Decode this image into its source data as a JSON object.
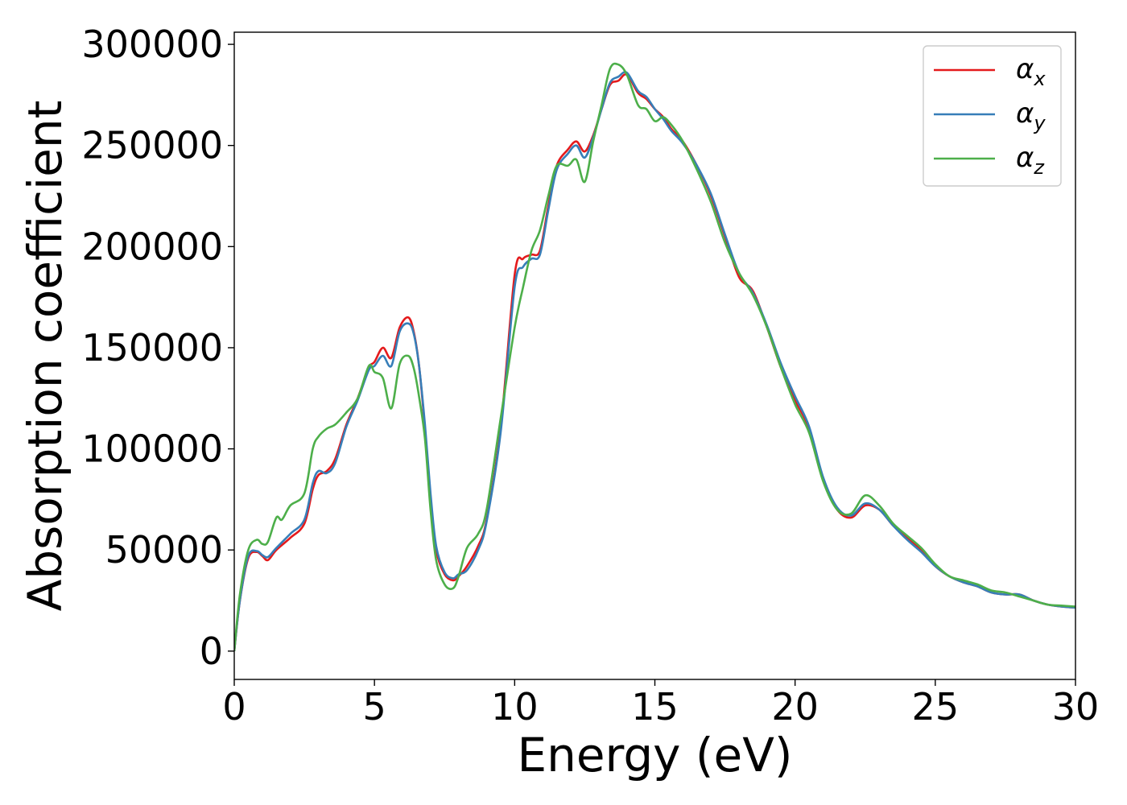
{
  "chart_data": {
    "type": "line",
    "xlabel": "Energy (eV)",
    "ylabel": "Absorption coefficient",
    "xlim": [
      0,
      30
    ],
    "ylim": [
      -14000,
      306000
    ],
    "xticks": [
      0,
      5,
      10,
      15,
      20,
      25,
      30
    ],
    "yticks": [
      0,
      50000,
      100000,
      150000,
      200000,
      250000,
      300000
    ],
    "grid": false,
    "legend_position": "top-right",
    "series": [
      {
        "name": "α_x",
        "symbol": "α",
        "subscript": "x",
        "color": "#e41a1c",
        "x": [
          0,
          0.2,
          0.5,
          0.8,
          1.0,
          1.2,
          1.5,
          2.0,
          2.5,
          2.8,
          3.0,
          3.3,
          3.6,
          4.0,
          4.4,
          4.8,
          5.0,
          5.3,
          5.6,
          5.9,
          6.2,
          6.4,
          6.6,
          6.8,
          7.0,
          7.2,
          7.5,
          7.8,
          8.0,
          8.3,
          8.7,
          9.0,
          9.5,
          10.0,
          10.3,
          10.6,
          10.9,
          11.2,
          11.5,
          11.9,
          12.2,
          12.5,
          12.8,
          13.1,
          13.4,
          13.7,
          14.0,
          14.4,
          14.7,
          15.0,
          15.3,
          15.6,
          16.0,
          16.5,
          17.0,
          17.5,
          18.0,
          18.5,
          19.0,
          19.5,
          20.0,
          20.5,
          21.0,
          21.5,
          22.0,
          22.5,
          23.0,
          23.5,
          24.0,
          24.5,
          25.0,
          25.5,
          26.0,
          26.5,
          27.0,
          27.5,
          28.0,
          28.5,
          29.0,
          29.5,
          30.0
        ],
        "y": [
          0,
          25000,
          46000,
          49000,
          47000,
          45000,
          50000,
          56000,
          63000,
          80000,
          87000,
          89000,
          95000,
          112000,
          125000,
          140000,
          143000,
          150000,
          145000,
          160000,
          165000,
          158000,
          140000,
          110000,
          75000,
          50000,
          38000,
          35000,
          37000,
          42000,
          52000,
          65000,
          110000,
          186000,
          194000,
          196000,
          198000,
          220000,
          240000,
          248000,
          252000,
          247000,
          255000,
          268000,
          280000,
          282000,
          285000,
          276000,
          273000,
          268000,
          264000,
          258000,
          252000,
          240000,
          225000,
          205000,
          185000,
          178000,
          160000,
          140000,
          124000,
          110000,
          85000,
          70000,
          66000,
          72000,
          70000,
          62000,
          56000,
          50000,
          42000,
          37000,
          34000,
          32000,
          29000,
          28000,
          28000,
          25000,
          23000,
          22000,
          21500
        ]
      },
      {
        "name": "α_y",
        "symbol": "α",
        "subscript": "y",
        "color": "#377eb8",
        "x": [
          0,
          0.2,
          0.5,
          0.8,
          1.0,
          1.2,
          1.5,
          2.0,
          2.5,
          2.8,
          3.0,
          3.3,
          3.6,
          4.0,
          4.4,
          4.8,
          5.0,
          5.3,
          5.6,
          5.9,
          6.2,
          6.4,
          6.6,
          6.8,
          7.0,
          7.2,
          7.5,
          7.8,
          8.0,
          8.3,
          8.7,
          9.0,
          9.5,
          10.0,
          10.3,
          10.6,
          10.9,
          11.2,
          11.5,
          11.9,
          12.2,
          12.5,
          12.8,
          13.1,
          13.4,
          13.7,
          14.0,
          14.4,
          14.7,
          15.0,
          15.3,
          15.6,
          16.0,
          16.5,
          17.0,
          17.5,
          18.0,
          18.5,
          19.0,
          19.5,
          20.0,
          20.5,
          21.0,
          21.5,
          22.0,
          22.5,
          23.0,
          23.5,
          24.0,
          24.5,
          25.0,
          25.5,
          26.0,
          26.5,
          27.0,
          27.5,
          28.0,
          28.5,
          29.0,
          29.5,
          30.0
        ],
        "y": [
          0,
          25000,
          47000,
          49500,
          47500,
          46500,
          51000,
          58000,
          65000,
          83000,
          89000,
          88000,
          93000,
          111000,
          124000,
          139000,
          141000,
          146000,
          141000,
          158000,
          162000,
          157000,
          140000,
          112000,
          78000,
          52000,
          39000,
          36000,
          38000,
          40000,
          50000,
          64000,
          108000,
          180000,
          190000,
          194000,
          196000,
          218000,
          238000,
          246000,
          250000,
          244000,
          254000,
          268000,
          281000,
          284000,
          286000,
          277000,
          274000,
          268000,
          263000,
          257000,
          251000,
          240000,
          226000,
          206000,
          187000,
          177000,
          161000,
          142000,
          126000,
          111000,
          86000,
          71000,
          67000,
          73000,
          70000,
          62000,
          55000,
          49000,
          42000,
          37000,
          34000,
          32000,
          29000,
          28000,
          28000,
          25000,
          23000,
          22000,
          21500
        ]
      },
      {
        "name": "α_z",
        "symbol": "α",
        "subscript": "z",
        "color": "#4daf4a",
        "x": [
          0,
          0.2,
          0.5,
          0.8,
          1.0,
          1.2,
          1.5,
          1.7,
          2.0,
          2.5,
          2.8,
          3.0,
          3.3,
          3.6,
          4.0,
          4.4,
          4.8,
          5.0,
          5.3,
          5.6,
          5.9,
          6.2,
          6.4,
          6.6,
          6.8,
          7.0,
          7.2,
          7.5,
          7.8,
          8.0,
          8.3,
          8.7,
          9.0,
          9.5,
          10.0,
          10.3,
          10.6,
          10.9,
          11.2,
          11.5,
          11.9,
          12.2,
          12.5,
          12.8,
          13.1,
          13.4,
          13.7,
          14.0,
          14.4,
          14.7,
          15.0,
          15.3,
          15.6,
          16.0,
          16.5,
          17.0,
          17.5,
          18.0,
          18.5,
          19.0,
          19.5,
          20.0,
          20.5,
          21.0,
          21.5,
          22.0,
          22.5,
          23.0,
          23.5,
          24.0,
          24.5,
          25.0,
          25.5,
          26.0,
          26.5,
          27.0,
          27.5,
          28.0,
          28.5,
          29.0,
          29.5,
          30.0
        ],
        "y": [
          0,
          28000,
          50000,
          55000,
          53000,
          54000,
          66000,
          65000,
          72000,
          78000,
          100000,
          106000,
          110000,
          112000,
          118000,
          125000,
          141000,
          138000,
          135000,
          120000,
          142000,
          146000,
          140000,
          125000,
          105000,
          70000,
          45000,
          33000,
          31000,
          37000,
          51000,
          58000,
          70000,
          115000,
          160000,
          180000,
          198000,
          208000,
          225000,
          240000,
          240000,
          243000,
          232000,
          252000,
          270000,
          288000,
          290000,
          285000,
          270000,
          268000,
          262000,
          264000,
          260000,
          252000,
          238000,
          222000,
          202000,
          187000,
          176000,
          160000,
          140000,
          122000,
          108000,
          84000,
          70000,
          68000,
          77000,
          72000,
          63000,
          57000,
          51000,
          43000,
          37000,
          35000,
          33000,
          30000,
          29000,
          27000,
          25000,
          23000,
          22500,
          22000
        ]
      }
    ]
  }
}
